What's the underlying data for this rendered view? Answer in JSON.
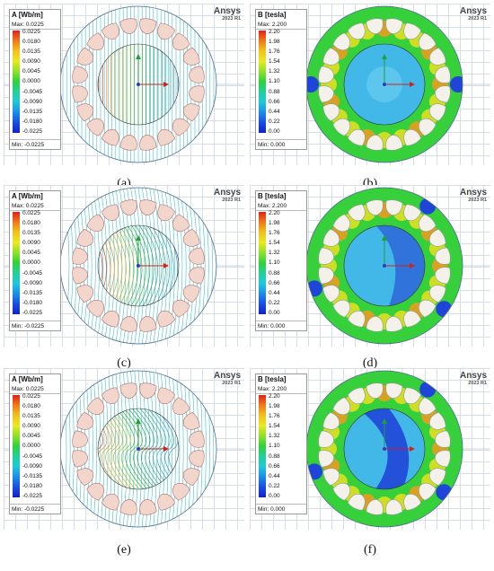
{
  "panels": [
    {
      "id": "a",
      "caption": "(a)",
      "field": "A",
      "legend": {
        "title": "A [Wb/m]",
        "max": "Max: 0.0225",
        "min": "Min: -0.0225",
        "ticks": [
          "0.0225",
          "0.0180",
          "0.0135",
          "0.0090",
          "0.0045",
          "0.0000",
          "-0.0045",
          "-0.0090",
          "-0.0135",
          "-0.0180",
          "-0.0225"
        ]
      },
      "brand": "Ansys",
      "version": "2023 R1"
    },
    {
      "id": "b",
      "caption": "(b)",
      "field": "B",
      "legend": {
        "title": "B [tesla]",
        "max": "Max: 2.200",
        "min": "Min: 0.000",
        "ticks": [
          "2.20",
          "1.98",
          "1.76",
          "1.54",
          "1.32",
          "1.10",
          "0.88",
          "0.66",
          "0.44",
          "0.22",
          "0.00"
        ]
      },
      "brand": "Ansys",
      "version": "2023 R1"
    },
    {
      "id": "c",
      "caption": "(c)",
      "field": "A",
      "legend": {
        "title": "A [Wb/m]",
        "max": "Max: 0.0225",
        "min": "Min: -0.0225",
        "ticks": [
          "0.0225",
          "0.0180",
          "0.0135",
          "0.0090",
          "0.0045",
          "0.0000",
          "-0.0045",
          "-0.0090",
          "-0.0135",
          "-0.0180",
          "-0.0225"
        ]
      },
      "brand": "Ansys",
      "version": "2023 R1"
    },
    {
      "id": "d",
      "caption": "(d)",
      "field": "B",
      "legend": {
        "title": "B [tesla]",
        "max": "Max: 2.200",
        "min": "Min: 0.000",
        "ticks": [
          "2.20",
          "1.98",
          "1.76",
          "1.54",
          "1.32",
          "1.10",
          "0.88",
          "0.66",
          "0.44",
          "0.22",
          "0.00"
        ]
      },
      "brand": "Ansys",
      "version": "2023 R1"
    },
    {
      "id": "e",
      "caption": "(e)",
      "field": "A",
      "legend": {
        "title": "A [Wb/m]",
        "max": "Max: 0.0225",
        "min": "Min: -0.0225",
        "ticks": [
          "0.0225",
          "0.0180",
          "0.0135",
          "0.0090",
          "0.0045",
          "0.0000",
          "-0.0045",
          "-0.0090",
          "-0.0135",
          "-0.0180",
          "-0.0225"
        ]
      },
      "brand": "Ansys",
      "version": "2023 R1"
    },
    {
      "id": "f",
      "caption": "(f)",
      "field": "B",
      "legend": {
        "title": "B [tesla]",
        "max": "Max: 2.200",
        "min": "Min: 0.000",
        "ticks": [
          "2.20",
          "1.98",
          "1.76",
          "1.54",
          "1.32",
          "1.10",
          "0.88",
          "0.66",
          "0.44",
          "0.22",
          "0.00"
        ]
      },
      "brand": "Ansys",
      "version": "2023 R1"
    }
  ],
  "colors": {
    "slot_fill": "#f2d6cc",
    "slot_stroke": "#b07070",
    "flux_line_stator": "#2fb7c8",
    "axis_y": "#1f9e3a",
    "axis_x": "#d21f1f",
    "axis_origin": "#2a3fb8"
  }
}
